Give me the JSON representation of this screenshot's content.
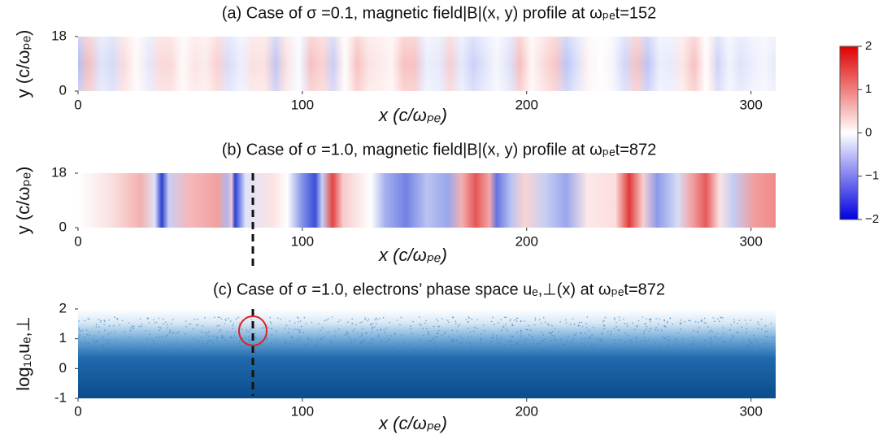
{
  "chart_data": [
    {
      "type": "heatmap",
      "title": "(a) Case of σ =0.1, magnetic field|B|(x, y) profile at ωₚₑt=152",
      "xlabel": "x (c/ωₚₑ)",
      "ylabel": "y (c/ωₚₑ)",
      "xlim": [
        0,
        311
      ],
      "xticks": [
        0,
        100,
        200,
        300
      ],
      "ylim": [
        0,
        18
      ],
      "yticks": [
        0,
        18
      ],
      "colorbar": {
        "lim": [
          -2,
          2
        ],
        "ticks": [
          {
            "value": -2,
            "label": "−2"
          },
          {
            "value": -1,
            "label": "−1"
          },
          0,
          1,
          2
        ]
      }
    },
    {
      "type": "heatmap",
      "title": "(b) Case of σ =1.0, magnetic field|B|(x, y) profile at ωₚₑt=872",
      "xlabel": "x (c/ωₚₑ)",
      "ylabel": "y (c/ωₚₑ)",
      "xlim": [
        0,
        311
      ],
      "xticks": [
        0,
        100,
        200,
        300
      ],
      "ylim": [
        0,
        18
      ],
      "yticks": [
        0,
        18
      ]
    },
    {
      "type": "heatmap",
      "title": "(c) Case of σ =1.0, electrons’ phase space uₑ,⊥(x) at ωₚₑt=872",
      "xlabel": "x (c/ωₚₑ)",
      "ylabel": "log₁₀uₑ,⊥",
      "xlim": [
        0,
        311
      ],
      "xticks": [
        0,
        100,
        200,
        300
      ],
      "ylim": [
        -1,
        2
      ],
      "yticks": [
        -1,
        0,
        1,
        2
      ]
    }
  ]
}
